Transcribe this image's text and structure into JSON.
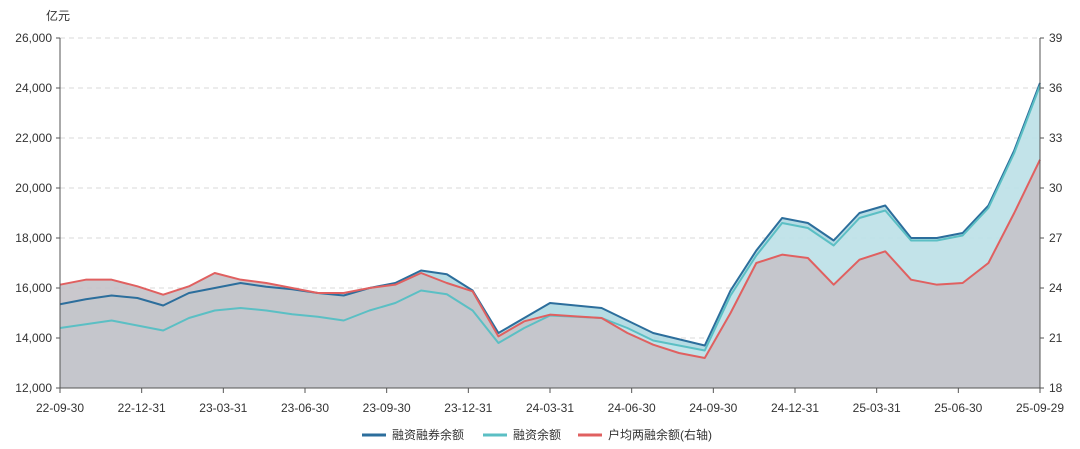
{
  "chart_data": {
    "type": "area",
    "unit_left": "亿元",
    "left_axis": {
      "min": 12000,
      "max": 26000,
      "ticks": [
        "12,000",
        "14,000",
        "16,000",
        "18,000",
        "20,000",
        "22,000",
        "24,000",
        "26,000"
      ]
    },
    "right_axis": {
      "min": 18,
      "max": 39,
      "ticks": [
        "18",
        "21",
        "24",
        "27",
        "30",
        "33",
        "36",
        "39"
      ]
    },
    "x_ticks": [
      "22-09-30",
      "22-12-31",
      "23-03-31",
      "23-06-30",
      "23-09-30",
      "23-12-31",
      "24-03-31",
      "24-06-30",
      "24-09-30",
      "24-12-31",
      "25-03-31",
      "25-06-30",
      "25-09-29"
    ],
    "grid": "horizontal-dashed",
    "legend_position": "bottom",
    "x": [
      "22-09-30",
      "22-10-31",
      "22-11-30",
      "22-12-31",
      "23-01-31",
      "23-02-28",
      "23-03-31",
      "23-04-30",
      "23-05-31",
      "23-06-30",
      "23-07-31",
      "23-08-31",
      "23-09-30",
      "23-10-31",
      "23-11-30",
      "23-12-31",
      "24-01-15",
      "24-01-31",
      "24-02-29",
      "24-03-31",
      "24-04-30",
      "24-05-31",
      "24-06-30",
      "24-07-31",
      "24-08-31",
      "24-09-18",
      "24-09-30",
      "24-10-31",
      "24-11-30",
      "24-12-31",
      "25-01-31",
      "25-02-28",
      "25-03-31",
      "25-04-30",
      "25-05-31",
      "25-06-30",
      "25-07-31",
      "25-08-31",
      "25-09-29"
    ],
    "series": [
      {
        "name": "融资融券余额",
        "axis": "left",
        "color": "#2c6e9c",
        "values": [
          15350,
          15550,
          15700,
          15600,
          15300,
          15800,
          16000,
          16200,
          16050,
          15950,
          15800,
          15700,
          16000,
          16200,
          16700,
          16550,
          15900,
          14200,
          14800,
          15400,
          15300,
          15200,
          14700,
          14200,
          13950,
          13700,
          15900,
          17500,
          18800,
          18600,
          17900,
          19000,
          19300,
          18000,
          18000,
          18200,
          19300,
          21500,
          24200
        ]
      },
      {
        "name": "融资余额",
        "axis": "left",
        "color": "#5bbfc4",
        "values": [
          14400,
          14550,
          14700,
          14500,
          14300,
          14800,
          15100,
          15200,
          15100,
          14950,
          14850,
          14700,
          15100,
          15400,
          15900,
          15750,
          15100,
          13800,
          14400,
          14900,
          14850,
          14800,
          14400,
          13900,
          13700,
          13500,
          15700,
          17300,
          18600,
          18400,
          17700,
          18800,
          19100,
          17900,
          17900,
          18100,
          19200,
          21400,
          24100
        ]
      },
      {
        "name": "户均两融余额(右轴)",
        "axis": "right",
        "color": "#e06060",
        "values": [
          24.2,
          24.5,
          24.5,
          24.1,
          23.6,
          24.1,
          24.9,
          24.5,
          24.3,
          24.0,
          23.7,
          23.7,
          24.0,
          24.2,
          24.9,
          24.3,
          23.8,
          21.1,
          22.0,
          22.4,
          22.3,
          22.2,
          21.3,
          20.6,
          20.1,
          19.8,
          22.5,
          25.5,
          26.0,
          25.8,
          24.2,
          25.7,
          26.2,
          24.5,
          24.2,
          24.3,
          25.5,
          28.5,
          31.7
        ]
      }
    ]
  }
}
